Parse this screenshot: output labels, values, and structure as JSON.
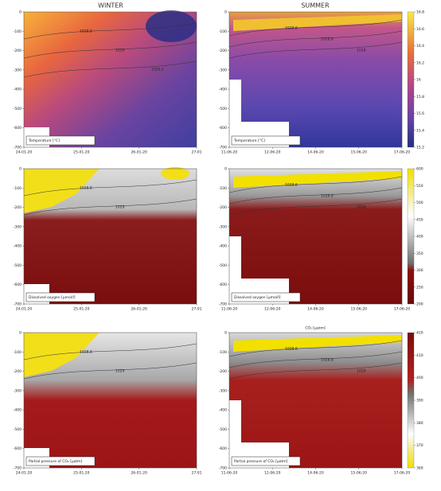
{
  "figure": {
    "columns": [
      "WINTER",
      "SUMMER"
    ]
  },
  "chart_data": [
    {
      "type": "heatmap",
      "label": "Temperature [°C]",
      "categories": [
        "24-01-20",
        "25-01-20",
        "26-01-20",
        "27-01"
      ],
      "ylim": [
        -700,
        0
      ],
      "yticks": [
        0,
        -100,
        -200,
        -300,
        -400,
        -500,
        -600,
        -700
      ],
      "contours": [
        "1028.8",
        "1029",
        "1029.2"
      ]
    },
    {
      "type": "heatmap",
      "label": "Temperature [°C]",
      "categories": [
        "11-06-20",
        "12-06-20",
        "14-06-20",
        "15-06-20",
        "17-06-20"
      ],
      "ylim": [
        -700,
        0
      ],
      "yticks": [
        0,
        -100,
        -200,
        -300,
        -400,
        -500,
        -600,
        -700
      ],
      "contours": [
        "1028.6",
        "1028.8",
        "1029"
      ],
      "colorbar": {
        "lim": [
          15.2,
          16.8
        ],
        "ticks": [
          16.8,
          16.6,
          16.4,
          16.2,
          16,
          15.8,
          15.6,
          15.4,
          15.2
        ]
      }
    },
    {
      "type": "heatmap",
      "label": "Dissolved oxygen [µmol/l]",
      "categories": [
        "24-01-20",
        "25-01-20",
        "26-01-20",
        "27-01"
      ],
      "ylim": [
        -700,
        0
      ],
      "yticks": [
        0,
        -100,
        -200,
        -300,
        -400,
        -500,
        -600,
        -700
      ],
      "contours": [
        "1028.8",
        "1029"
      ]
    },
    {
      "type": "heatmap",
      "label": "Dissolved oxygen [µmol/l]",
      "categories": [
        "11-06-20",
        "12-06-20",
        "14-06-20",
        "15-06-20",
        "17-06-20"
      ],
      "ylim": [
        -700,
        0
      ],
      "yticks": [
        0,
        -100,
        -200,
        -300,
        -400,
        -500,
        -600,
        -700
      ],
      "contours": [
        "1028.6",
        "1028.8",
        "1029"
      ],
      "colorbar": {
        "lim": [
          200,
          600
        ],
        "ticks": [
          600,
          550,
          500,
          450,
          400,
          350,
          300,
          250,
          200
        ]
      }
    },
    {
      "type": "heatmap",
      "label": "Partial pressure of CO₂ [µatm]",
      "categories": [
        "24-01-20",
        "25-01-20",
        "26-01-20",
        "27-01"
      ],
      "ylim": [
        -700,
        0
      ],
      "yticks": [
        0,
        -100,
        -200,
        -300,
        -400,
        -500,
        -600,
        -700
      ],
      "contours": [
        "1028.8",
        "1029"
      ]
    },
    {
      "type": "heatmap",
      "label": "Partial pressure of CO₂ [µatm]",
      "categories": [
        "11-06-20",
        "12-06-20",
        "14-06-20",
        "15-06-20",
        "17-06-20"
      ],
      "ylim": [
        -700,
        0
      ],
      "yticks": [
        0,
        -100,
        -200,
        -300,
        -400,
        -500,
        -600,
        -700
      ],
      "contours": [
        "1028.6",
        "1028.8",
        "1029"
      ],
      "colorbar": {
        "title": "CO₂ [µatm]",
        "lim": [
          360,
          420
        ],
        "ticks": [
          420,
          410,
          400,
          390,
          380,
          370,
          360
        ]
      }
    }
  ]
}
